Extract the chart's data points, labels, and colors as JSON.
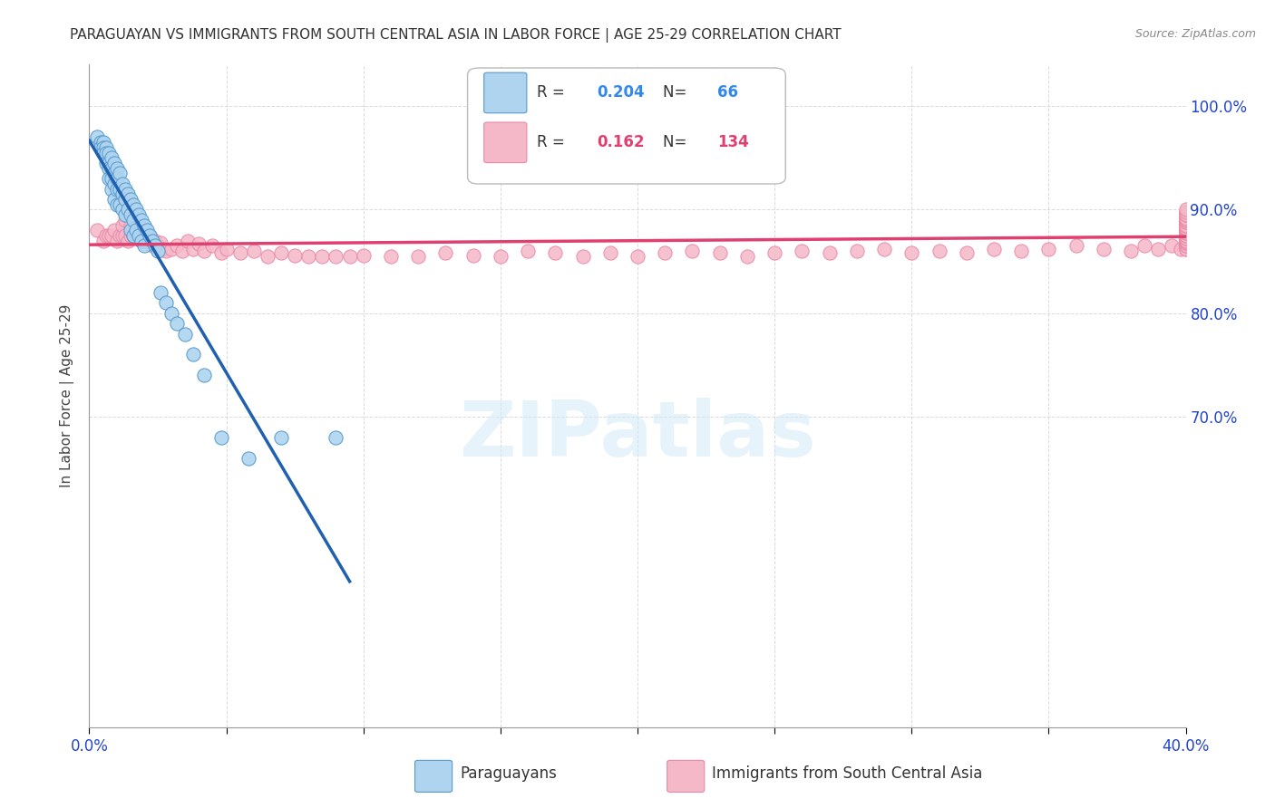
{
  "title": "PARAGUAYAN VS IMMIGRANTS FROM SOUTH CENTRAL ASIA IN LABOR FORCE | AGE 25-29 CORRELATION CHART",
  "source": "Source: ZipAtlas.com",
  "ylabel": "In Labor Force | Age 25-29",
  "xlim": [
    0.0,
    0.4
  ],
  "ylim": [
    0.4,
    1.04
  ],
  "ytick_positions": [
    0.7,
    0.8,
    0.9,
    1.0
  ],
  "ytick_labels": [
    "70.0%",
    "80.0%",
    "90.0%",
    "100.0%"
  ],
  "xtick_positions": [
    0.0,
    0.05,
    0.1,
    0.15,
    0.2,
    0.25,
    0.3,
    0.35,
    0.4
  ],
  "xtick_labels": [
    "0.0%",
    "",
    "",
    "",
    "",
    "",
    "",
    "",
    "40.0%"
  ],
  "blue_fill": "#aed4f0",
  "blue_edge": "#5599cc",
  "pink_fill": "#f5b8c8",
  "pink_edge": "#e888a8",
  "blue_line_color": "#2060b0",
  "pink_line_color": "#e04070",
  "legend_R_blue": "0.204",
  "legend_N_blue": "66",
  "legend_R_pink": "0.162",
  "legend_N_pink": "134",
  "watermark": "ZIPatlas",
  "blue_x": [
    0.003,
    0.004,
    0.004,
    0.005,
    0.005,
    0.005,
    0.006,
    0.006,
    0.006,
    0.007,
    0.007,
    0.007,
    0.007,
    0.008,
    0.008,
    0.008,
    0.008,
    0.009,
    0.009,
    0.009,
    0.009,
    0.01,
    0.01,
    0.01,
    0.01,
    0.011,
    0.011,
    0.011,
    0.012,
    0.012,
    0.012,
    0.013,
    0.013,
    0.013,
    0.014,
    0.014,
    0.015,
    0.015,
    0.015,
    0.016,
    0.016,
    0.016,
    0.017,
    0.017,
    0.018,
    0.018,
    0.019,
    0.019,
    0.02,
    0.02,
    0.021,
    0.022,
    0.023,
    0.024,
    0.025,
    0.026,
    0.028,
    0.03,
    0.032,
    0.035,
    0.038,
    0.042,
    0.048,
    0.058,
    0.07,
    0.09
  ],
  "blue_y": [
    0.97,
    0.965,
    0.96,
    0.965,
    0.96,
    0.955,
    0.96,
    0.955,
    0.945,
    0.955,
    0.945,
    0.94,
    0.93,
    0.95,
    0.94,
    0.93,
    0.92,
    0.945,
    0.935,
    0.925,
    0.91,
    0.94,
    0.93,
    0.92,
    0.905,
    0.935,
    0.92,
    0.905,
    0.925,
    0.915,
    0.9,
    0.92,
    0.91,
    0.895,
    0.915,
    0.9,
    0.91,
    0.895,
    0.88,
    0.905,
    0.89,
    0.875,
    0.9,
    0.88,
    0.895,
    0.875,
    0.89,
    0.87,
    0.885,
    0.865,
    0.88,
    0.875,
    0.87,
    0.865,
    0.86,
    0.82,
    0.81,
    0.8,
    0.79,
    0.78,
    0.76,
    0.74,
    0.68,
    0.66,
    0.68,
    0.68
  ],
  "pink_x": [
    0.003,
    0.005,
    0.006,
    0.007,
    0.008,
    0.009,
    0.01,
    0.011,
    0.012,
    0.012,
    0.013,
    0.013,
    0.014,
    0.015,
    0.015,
    0.016,
    0.016,
    0.017,
    0.017,
    0.018,
    0.018,
    0.019,
    0.019,
    0.02,
    0.02,
    0.021,
    0.022,
    0.022,
    0.023,
    0.024,
    0.025,
    0.026,
    0.027,
    0.028,
    0.03,
    0.032,
    0.034,
    0.036,
    0.038,
    0.04,
    0.042,
    0.045,
    0.048,
    0.05,
    0.055,
    0.06,
    0.065,
    0.07,
    0.075,
    0.08,
    0.085,
    0.09,
    0.095,
    0.1,
    0.11,
    0.12,
    0.13,
    0.14,
    0.15,
    0.16,
    0.17,
    0.18,
    0.19,
    0.2,
    0.21,
    0.22,
    0.23,
    0.24,
    0.25,
    0.26,
    0.27,
    0.28,
    0.29,
    0.3,
    0.31,
    0.32,
    0.33,
    0.34,
    0.35,
    0.36,
    0.37,
    0.38,
    0.385,
    0.39,
    0.395,
    0.398,
    0.4,
    0.4,
    0.4,
    0.4,
    0.4,
    0.4,
    0.4,
    0.4,
    0.4,
    0.4,
    0.4,
    0.4,
    0.4,
    0.4,
    0.4,
    0.4,
    0.4,
    0.4,
    0.4,
    0.4,
    0.4,
    0.4,
    0.4,
    0.4,
    0.4,
    0.4,
    0.4,
    0.4,
    0.4,
    0.4,
    0.4,
    0.4,
    0.4,
    0.4,
    0.4,
    0.4,
    0.4,
    0.4,
    0.4,
    0.4,
    0.4,
    0.4,
    0.4,
    0.4,
    0.4,
    0.4,
    0.4,
    0.4
  ],
  "pink_y": [
    0.88,
    0.87,
    0.875,
    0.875,
    0.875,
    0.88,
    0.87,
    0.875,
    0.875,
    0.885,
    0.875,
    0.89,
    0.87,
    0.875,
    0.885,
    0.875,
    0.88,
    0.875,
    0.88,
    0.875,
    0.885,
    0.87,
    0.88,
    0.87,
    0.875,
    0.87,
    0.87,
    0.875,
    0.865,
    0.87,
    0.865,
    0.868,
    0.862,
    0.86,
    0.862,
    0.865,
    0.86,
    0.87,
    0.862,
    0.867,
    0.86,
    0.865,
    0.858,
    0.862,
    0.858,
    0.86,
    0.855,
    0.858,
    0.856,
    0.855,
    0.855,
    0.855,
    0.855,
    0.856,
    0.855,
    0.855,
    0.858,
    0.856,
    0.855,
    0.86,
    0.858,
    0.855,
    0.858,
    0.855,
    0.858,
    0.86,
    0.858,
    0.855,
    0.858,
    0.86,
    0.858,
    0.86,
    0.862,
    0.858,
    0.86,
    0.858,
    0.862,
    0.86,
    0.862,
    0.865,
    0.862,
    0.86,
    0.865,
    0.862,
    0.865,
    0.862,
    0.865,
    0.862,
    0.865,
    0.868,
    0.862,
    0.865,
    0.868,
    0.865,
    0.868,
    0.87,
    0.868,
    0.87,
    0.87,
    0.87,
    0.872,
    0.87,
    0.872,
    0.875,
    0.872,
    0.875,
    0.878,
    0.875,
    0.878,
    0.88,
    0.878,
    0.88,
    0.882,
    0.88,
    0.882,
    0.885,
    0.882,
    0.885,
    0.888,
    0.885,
    0.888,
    0.89,
    0.888,
    0.89,
    0.892,
    0.89,
    0.892,
    0.895,
    0.892,
    0.895,
    0.898,
    0.895,
    0.898,
    0.9
  ]
}
